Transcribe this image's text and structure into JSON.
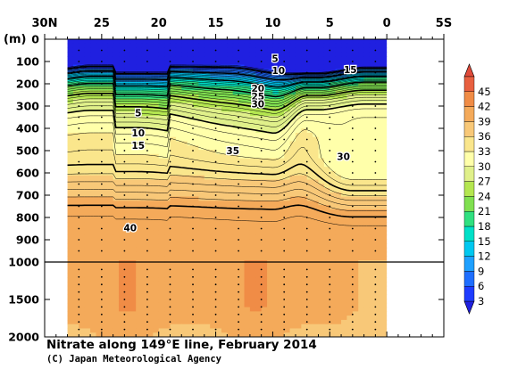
{
  "chart_data": {
    "type": "heatmap",
    "title": "Nitrate along 149°E line, February 2014",
    "credit": "(C) Japan Meteorological Agency",
    "x_axis": {
      "ticks": [
        {
          "value": 30,
          "label": "30N"
        },
        {
          "value": 25,
          "label": "25"
        },
        {
          "value": 20,
          "label": "20"
        },
        {
          "value": 15,
          "label": "15"
        },
        {
          "value": 10,
          "label": "10"
        },
        {
          "value": 5,
          "label": "5"
        },
        {
          "value": 0,
          "label": "0"
        },
        {
          "value": -5,
          "label": "5S"
        }
      ],
      "range": [
        30,
        -5
      ]
    },
    "y_axis": {
      "unit_label": "(m)",
      "upper_ticks": [
        0,
        100,
        200,
        300,
        400,
        500,
        600,
        700,
        800,
        900,
        1000
      ],
      "lower_ticks": [
        1000,
        1500,
        2000
      ],
      "range": [
        0,
        2000
      ],
      "break_depth": 1000
    },
    "data_extent": {
      "lat": [
        28,
        0
      ],
      "depth_max": 2000
    },
    "colorbar": {
      "levels": [
        3,
        6,
        9,
        12,
        15,
        18,
        21,
        24,
        27,
        30,
        33,
        36,
        39,
        42,
        45
      ],
      "colors": [
        "#1e3cff",
        "#1e6eff",
        "#1ea0ff",
        "#00c8f0",
        "#00e0c8",
        "#30e080",
        "#80e050",
        "#b4e650",
        "#e0f08a",
        "#ffffaa",
        "#fae68c",
        "#f8c878",
        "#f4aa5a",
        "#f08c46",
        "#e86040"
      ],
      "under_color": "#2020e0",
      "over_color": "#e04a3a"
    },
    "contour_labels": [
      {
        "lat": 9.8,
        "depth": 85,
        "value": "5"
      },
      {
        "lat": 9.5,
        "depth": 140,
        "value": "10"
      },
      {
        "lat": 3.2,
        "depth": 135,
        "value": "15"
      },
      {
        "lat": 11.3,
        "depth": 220,
        "value": "20"
      },
      {
        "lat": 11.3,
        "depth": 255,
        "value": "25"
      },
      {
        "lat": 11.3,
        "depth": 290,
        "value": "30"
      },
      {
        "lat": 21.8,
        "depth": 330,
        "value": "5"
      },
      {
        "lat": 21.8,
        "depth": 420,
        "value": "10"
      },
      {
        "lat": 21.8,
        "depth": 475,
        "value": "15"
      },
      {
        "lat": 13.5,
        "depth": 500,
        "value": "35"
      },
      {
        "lat": 3.8,
        "depth": 525,
        "value": "30"
      },
      {
        "lat": 22.5,
        "depth": 845,
        "value": "40"
      }
    ],
    "stations_lat": [
      27,
      25,
      23,
      21,
      19,
      17,
      15,
      13,
      11,
      9,
      7,
      5,
      3,
      1
    ],
    "sample_depths": [
      50,
      100,
      150,
      200,
      250,
      300,
      350,
      400,
      450,
      500,
      550,
      600,
      650,
      700,
      750,
      800,
      850,
      900,
      950,
      1100,
      1200,
      1300,
      1400,
      1500,
      1600,
      1700,
      1800,
      1900
    ]
  }
}
